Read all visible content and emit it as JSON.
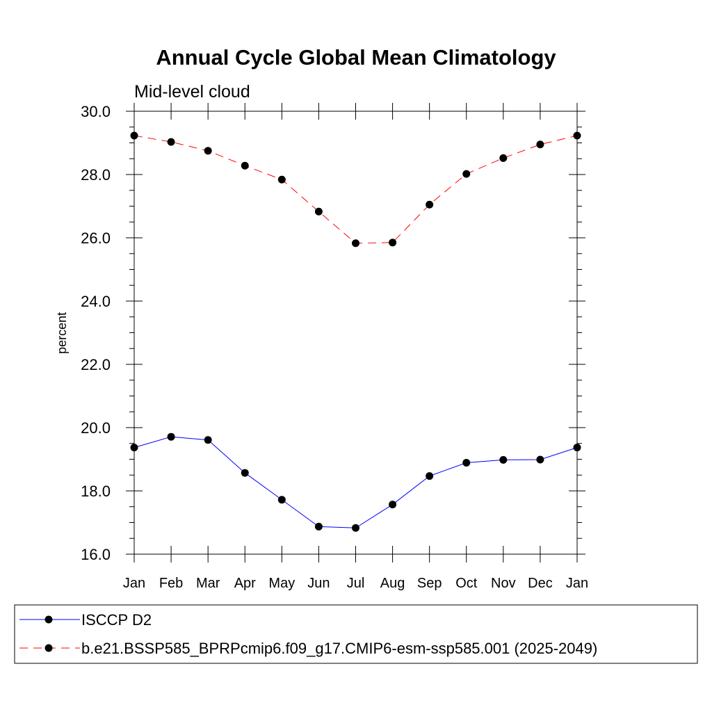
{
  "chart_data": {
    "type": "line",
    "title": "Annual Cycle Global Mean Climatology",
    "subtitle": "Mid-level cloud",
    "xlabel": "",
    "ylabel": "percent",
    "categories": [
      "Jan",
      "Feb",
      "Mar",
      "Apr",
      "May",
      "Jun",
      "Jul",
      "Aug",
      "Sep",
      "Oct",
      "Nov",
      "Dec",
      "Jan"
    ],
    "ylim": [
      16.0,
      30.0
    ],
    "yticks": [
      "16.0",
      "18.0",
      "20.0",
      "22.0",
      "24.0",
      "26.0",
      "28.0",
      "30.0"
    ],
    "grid": false,
    "legend_position": "bottom",
    "series": [
      {
        "name": "ISCCP D2",
        "color": "#0000ff",
        "line_style": "solid",
        "marker": "filled-circle",
        "values": [
          19.37,
          19.71,
          19.61,
          18.57,
          17.72,
          16.87,
          16.83,
          17.57,
          18.47,
          18.89,
          18.98,
          18.99,
          19.37
        ]
      },
      {
        "name": "b.e21.BSSP585_BPRPcmip6.f09_g17.CMIP6-esm-ssp585.001 (2025-2049)",
        "color": "#ff0000",
        "line_style": "dashed",
        "marker": "filled-circle",
        "values": [
          29.23,
          29.03,
          28.75,
          28.28,
          27.84,
          26.83,
          25.83,
          25.85,
          27.05,
          28.02,
          28.52,
          28.95,
          29.23
        ]
      }
    ]
  }
}
